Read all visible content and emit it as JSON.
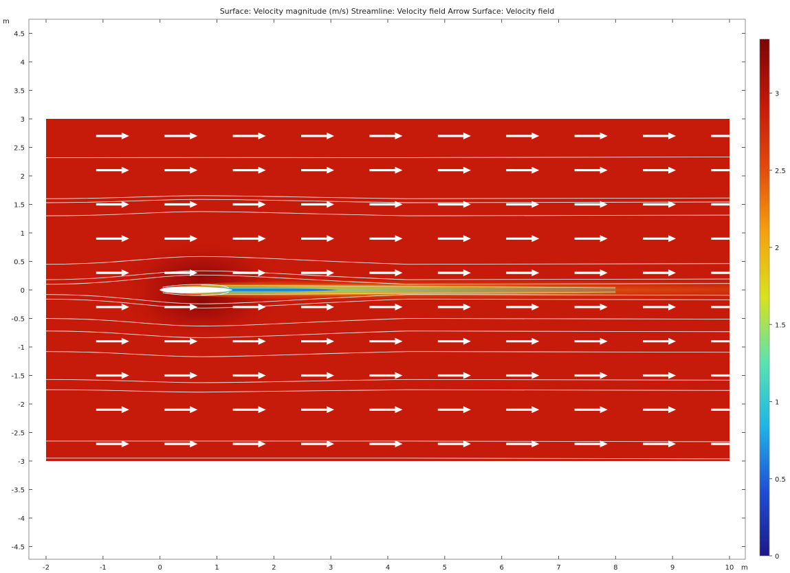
{
  "chart_data": {
    "type": "heatmap",
    "title": "Surface: Velocity magnitude (m/s)  Streamline: Velocity field  Arrow Surface: Velocity field",
    "xlabel": "",
    "ylabel": "",
    "x_unit": "m",
    "y_unit": "m",
    "xlim": [
      -2,
      10
    ],
    "ylim": [
      -4.7,
      4.8
    ],
    "x_ticks": [
      "-2",
      "-1",
      "0",
      "1",
      "2",
      "3",
      "4",
      "5",
      "6",
      "7",
      "8",
      "9",
      "10"
    ],
    "y_ticks": [
      "4.5",
      "4",
      "3.5",
      "3",
      "2.5",
      "2",
      "1.5",
      "1",
      "0.5",
      "0",
      "-0.5",
      "-1",
      "-1.5",
      "-2",
      "-2.5",
      "-3",
      "-3.5",
      "-4",
      "-4.5"
    ],
    "domain": {
      "x": [
        -2,
        10
      ],
      "y": [
        -3,
        3
      ]
    },
    "field": {
      "freestream_speed": 3.0,
      "max_speed": 3.35,
      "obstacle_leading_edge_x": 0,
      "wake_centerline_y": 0,
      "wake_min_speed": 0.3
    },
    "colorbar": {
      "min": 0,
      "max": 3.35,
      "ticks": [
        "3",
        "2.5",
        "2",
        "1.5",
        "1",
        "0.5",
        "0"
      ],
      "colormap": "rainbow",
      "colors": [
        "#1c1887",
        "#1f4ed6",
        "#1fb4e6",
        "#5be3b0",
        "#d8e21c",
        "#f5a20f",
        "#e24a0e",
        "#c41809",
        "#7a0605"
      ]
    },
    "arrows": {
      "x_positions": [
        -1,
        0.2,
        1.4,
        2.6,
        3.8,
        5,
        6.2,
        7.4,
        8.6,
        9.8
      ],
      "y_positions": [
        2.7,
        2.1,
        1.5,
        0.9,
        0.3,
        -0.3,
        -0.9,
        -1.5,
        -2.1,
        -2.7
      ],
      "length": 0.58,
      "color": "#ffffff"
    },
    "streamline_color": "#ffffff",
    "grid": false,
    "legend": "colorbar-right"
  }
}
